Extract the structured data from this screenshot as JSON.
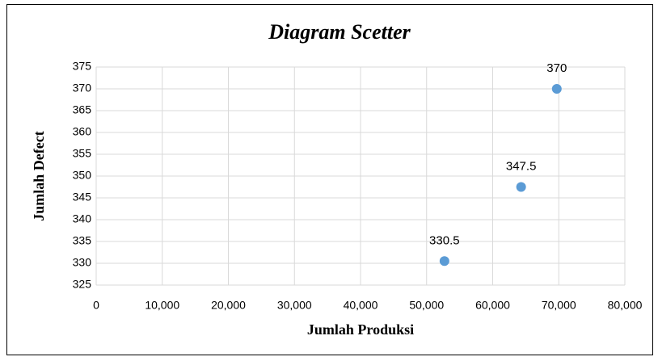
{
  "chart_data": {
    "type": "scatter",
    "title": "Diagram Scetter",
    "xlabel": "Jumlah Produksi",
    "ylabel": "Jumlah Defect",
    "x": [
      52700,
      64300,
      69700
    ],
    "values": [
      330.5,
      347.5,
      370
    ],
    "color": "#5b9bd5",
    "xlim": [
      0,
      80000
    ],
    "xticks": [
      0,
      {
        "value": 10000,
        "label": "10,000"
      },
      {
        "value": 20000,
        "label": "20,000"
      },
      {
        "value": 30000,
        "label": "30,000"
      },
      {
        "value": 40000,
        "label": "40,000"
      },
      {
        "value": 50000,
        "label": "50,000"
      },
      {
        "value": 60000,
        "label": "60,000"
      },
      {
        "value": 70000,
        "label": "70,000"
      },
      {
        "value": 80000,
        "label": "80,000"
      }
    ],
    "ylim": [
      325,
      375
    ],
    "yticks": [
      325,
      330,
      335,
      340,
      345,
      350,
      355,
      360,
      365,
      370,
      375
    ],
    "grid": true
  }
}
